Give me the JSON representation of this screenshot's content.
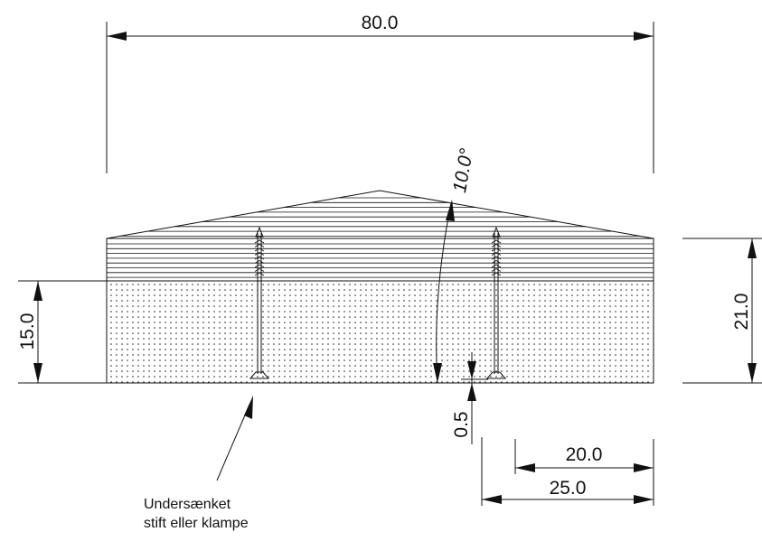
{
  "dimensions": {
    "overall_width": "80.0",
    "total_height": "21.0",
    "base_height": "15.0",
    "slope_angle": "10.0°",
    "recess_depth": "0.5",
    "nail_offset_inner": "20.0",
    "nail_offset_outer": "25.0"
  },
  "annotation": {
    "line1": "Undersænket",
    "line2": "stift eller klampe"
  },
  "colors": {
    "lines": "#111111",
    "background": "#ffffff"
  }
}
